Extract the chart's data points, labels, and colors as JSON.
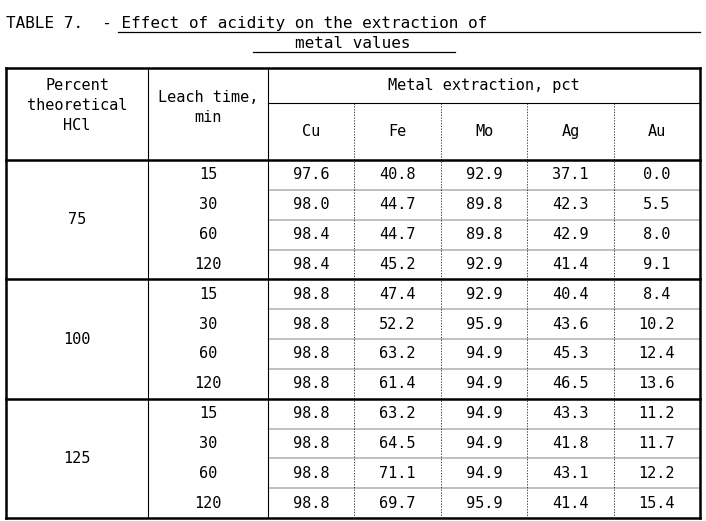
{
  "title_line1": "TABLE 7.  - Effect of acidity on the extraction of",
  "title_line2": "metal values",
  "col_headers_metal": "Metal extraction, pct",
  "metal_cols": [
    "Cu",
    "Fe",
    "Mo",
    "Ag",
    "Au"
  ],
  "groups": [
    {
      "hcl": "75",
      "rows": [
        {
          "time": "15",
          "Cu": "97.6",
          "Fe": "40.8",
          "Mo": "92.9",
          "Ag": "37.1",
          "Au": "0.0"
        },
        {
          "time": "30",
          "Cu": "98.0",
          "Fe": "44.7",
          "Mo": "89.8",
          "Ag": "42.3",
          "Au": "5.5"
        },
        {
          "time": "60",
          "Cu": "98.4",
          "Fe": "44.7",
          "Mo": "89.8",
          "Ag": "42.9",
          "Au": "8.0"
        },
        {
          "time": "120",
          "Cu": "98.4",
          "Fe": "45.2",
          "Mo": "92.9",
          "Ag": "41.4",
          "Au": "9.1"
        }
      ]
    },
    {
      "hcl": "100",
      "rows": [
        {
          "time": "15",
          "Cu": "98.8",
          "Fe": "47.4",
          "Mo": "92.9",
          "Ag": "40.4",
          "Au": "8.4"
        },
        {
          "time": "30",
          "Cu": "98.8",
          "Fe": "52.2",
          "Mo": "95.9",
          "Ag": "43.6",
          "Au": "10.2"
        },
        {
          "time": "60",
          "Cu": "98.8",
          "Fe": "63.2",
          "Mo": "94.9",
          "Ag": "45.3",
          "Au": "12.4"
        },
        {
          "time": "120",
          "Cu": "98.8",
          "Fe": "61.4",
          "Mo": "94.9",
          "Ag": "46.5",
          "Au": "13.6"
        }
      ]
    },
    {
      "hcl": "125",
      "rows": [
        {
          "time": "15",
          "Cu": "98.8",
          "Fe": "63.2",
          "Mo": "94.9",
          "Ag": "43.3",
          "Au": "11.2"
        },
        {
          "time": "30",
          "Cu": "98.8",
          "Fe": "64.5",
          "Mo": "94.9",
          "Ag": "41.8",
          "Au": "11.7"
        },
        {
          "time": "60",
          "Cu": "98.8",
          "Fe": "71.1",
          "Mo": "94.9",
          "Ag": "43.1",
          "Au": "12.2"
        },
        {
          "time": "120",
          "Cu": "98.8",
          "Fe": "69.7",
          "Mo": "95.9",
          "Ag": "41.4",
          "Au": "15.4"
        }
      ]
    }
  ],
  "bg_color": "#ffffff",
  "font_family": "monospace",
  "font_size": 11.0,
  "title_font_size": 11.5
}
